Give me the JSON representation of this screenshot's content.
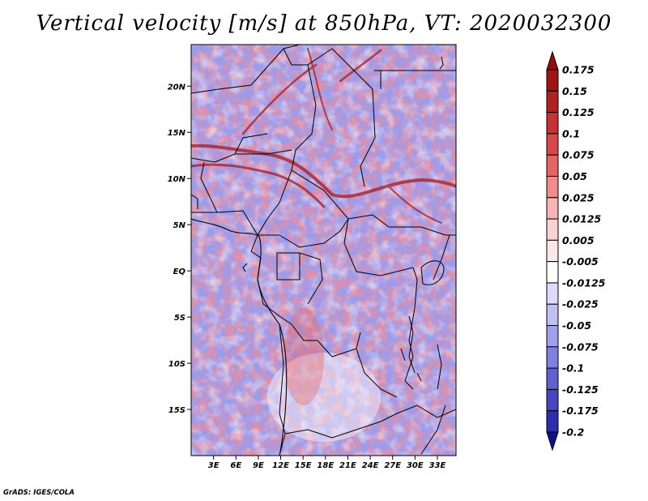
{
  "title": "Vertical velocity [m/s] at 850hPa, VT: 2020032300",
  "credit": "GrADS: IGES/COLA",
  "map": {
    "lon_range": [
      0,
      35.5
    ],
    "lat_range": [
      -20,
      24.5
    ],
    "lat_ticks": [
      {
        "value": 20,
        "label": "20N"
      },
      {
        "value": 15,
        "label": "15N"
      },
      {
        "value": 10,
        "label": "10N"
      },
      {
        "value": 5,
        "label": "5N"
      },
      {
        "value": 0,
        "label": "EQ"
      },
      {
        "value": -5,
        "label": "5S"
      },
      {
        "value": -10,
        "label": "10S"
      },
      {
        "value": -15,
        "label": "15S"
      }
    ],
    "lon_ticks": [
      {
        "value": 3,
        "label": "3E"
      },
      {
        "value": 6,
        "label": "6E"
      },
      {
        "value": 9,
        "label": "9E"
      },
      {
        "value": 12,
        "label": "12E"
      },
      {
        "value": 15,
        "label": "15E"
      },
      {
        "value": 18,
        "label": "18E"
      },
      {
        "value": 21,
        "label": "21E"
      },
      {
        "value": 24,
        "label": "24E"
      },
      {
        "value": 27,
        "label": "27E"
      },
      {
        "value": 30,
        "label": "30E"
      },
      {
        "value": 33,
        "label": "33E"
      }
    ]
  },
  "colorbar": {
    "levels": [
      {
        "label": "0.175",
        "color": "#a01414"
      },
      {
        "label": "0.15",
        "color": "#b42020"
      },
      {
        "label": "0.125",
        "color": "#c83232"
      },
      {
        "label": "0.1",
        "color": "#d84848"
      },
      {
        "label": "0.075",
        "color": "#e66464"
      },
      {
        "label": "0.05",
        "color": "#f08c8c"
      },
      {
        "label": "0.025",
        "color": "#f6b4b4"
      },
      {
        "label": "0.0125",
        "color": "#fad2d2"
      },
      {
        "label": "0.005",
        "color": "#fce6e6"
      },
      {
        "label": "-0.005",
        "color": "#ffffff"
      },
      {
        "label": "-0.0125",
        "color": "#dcdcfa"
      },
      {
        "label": "-0.025",
        "color": "#c0c0f4"
      },
      {
        "label": "-0.05",
        "color": "#a0a0ec"
      },
      {
        "label": "-0.075",
        "color": "#8080e0"
      },
      {
        "label": "-0.1",
        "color": "#6060d2"
      },
      {
        "label": "-0.125",
        "color": "#4646c2"
      },
      {
        "label": "-0.175",
        "color": "#2d2daf"
      },
      {
        "label": "-0.2",
        "color": "#1a1a9c"
      }
    ],
    "top_arrow_color": "#960a0a",
    "bottom_arrow_color": "#10108c"
  }
}
